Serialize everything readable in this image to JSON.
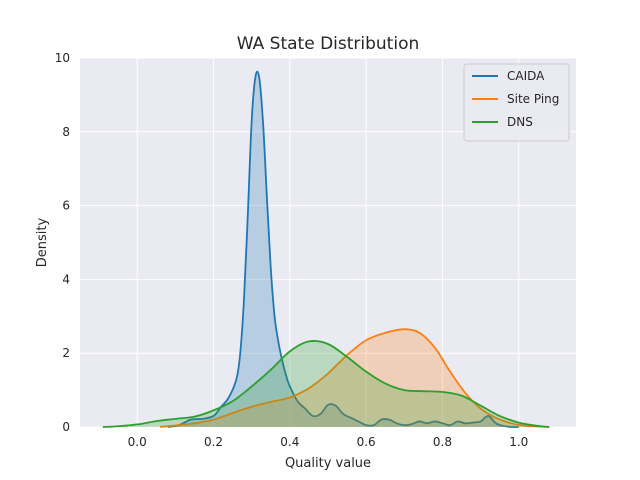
{
  "chart_data": {
    "type": "area",
    "title": "WA State Distribution",
    "xlabel": "Quality value",
    "ylabel": "Density",
    "xlim": [
      -0.15,
      1.15
    ],
    "ylim": [
      0,
      10
    ],
    "xticks": [
      0.0,
      0.2,
      0.4,
      0.6,
      0.8,
      1.0
    ],
    "xtick_labels": [
      "0.0",
      "0.2",
      "0.4",
      "0.6",
      "0.8",
      "1.0"
    ],
    "yticks": [
      0,
      2,
      4,
      6,
      8,
      10
    ],
    "ytick_labels": [
      "0",
      "2",
      "4",
      "6",
      "8",
      "10"
    ],
    "grid": true,
    "legend_position": "top-right",
    "series": [
      {
        "name": "CAIDA",
        "color": "#1f77b4",
        "x": [
          0.08,
          0.11,
          0.14,
          0.17,
          0.2,
          0.22,
          0.24,
          0.26,
          0.27,
          0.28,
          0.29,
          0.3,
          0.31,
          0.32,
          0.33,
          0.34,
          0.35,
          0.36,
          0.37,
          0.38,
          0.39,
          0.4,
          0.42,
          0.44,
          0.46,
          0.48,
          0.5,
          0.52,
          0.54,
          0.56,
          0.58,
          0.6,
          0.62,
          0.64,
          0.66,
          0.68,
          0.7,
          0.72,
          0.74,
          0.76,
          0.78,
          0.8,
          0.82,
          0.84,
          0.86,
          0.88,
          0.9,
          0.92,
          0.94,
          0.96,
          0.98,
          1.0
        ],
        "y": [
          0.0,
          0.05,
          0.2,
          0.22,
          0.3,
          0.55,
          0.8,
          1.3,
          2.0,
          3.5,
          5.8,
          8.3,
          9.5,
          9.45,
          8.2,
          6.2,
          4.3,
          3.0,
          2.3,
          1.8,
          1.4,
          1.1,
          0.7,
          0.5,
          0.3,
          0.35,
          0.6,
          0.58,
          0.35,
          0.25,
          0.15,
          0.05,
          0.05,
          0.2,
          0.2,
          0.1,
          0.05,
          0.08,
          0.15,
          0.1,
          0.15,
          0.1,
          0.05,
          0.15,
          0.1,
          0.12,
          0.15,
          0.3,
          0.1,
          0.03,
          0.0,
          0.0
        ]
      },
      {
        "name": "Site Ping",
        "color": "#ff7f0e",
        "x": [
          0.06,
          0.1,
          0.15,
          0.2,
          0.25,
          0.3,
          0.35,
          0.4,
          0.45,
          0.5,
          0.55,
          0.6,
          0.65,
          0.7,
          0.74,
          0.78,
          0.82,
          0.86,
          0.9,
          0.94,
          0.98,
          1.02,
          1.06,
          1.08
        ],
        "y": [
          0.0,
          0.04,
          0.1,
          0.2,
          0.38,
          0.55,
          0.68,
          0.8,
          1.05,
          1.45,
          1.95,
          2.35,
          2.55,
          2.65,
          2.55,
          2.15,
          1.5,
          0.92,
          0.5,
          0.25,
          0.1,
          0.03,
          0.01,
          0.0
        ]
      },
      {
        "name": "DNS",
        "color": "#2ca02c",
        "x": [
          -0.09,
          -0.05,
          0.0,
          0.05,
          0.1,
          0.15,
          0.2,
          0.25,
          0.3,
          0.35,
          0.4,
          0.45,
          0.5,
          0.55,
          0.6,
          0.65,
          0.7,
          0.75,
          0.8,
          0.85,
          0.9,
          0.95,
          1.0,
          1.05,
          1.08
        ],
        "y": [
          0.0,
          0.02,
          0.07,
          0.16,
          0.22,
          0.28,
          0.45,
          0.7,
          1.1,
          1.55,
          2.05,
          2.32,
          2.25,
          1.9,
          1.5,
          1.18,
          1.0,
          0.97,
          0.95,
          0.85,
          0.58,
          0.3,
          0.12,
          0.03,
          0.0
        ]
      }
    ]
  }
}
